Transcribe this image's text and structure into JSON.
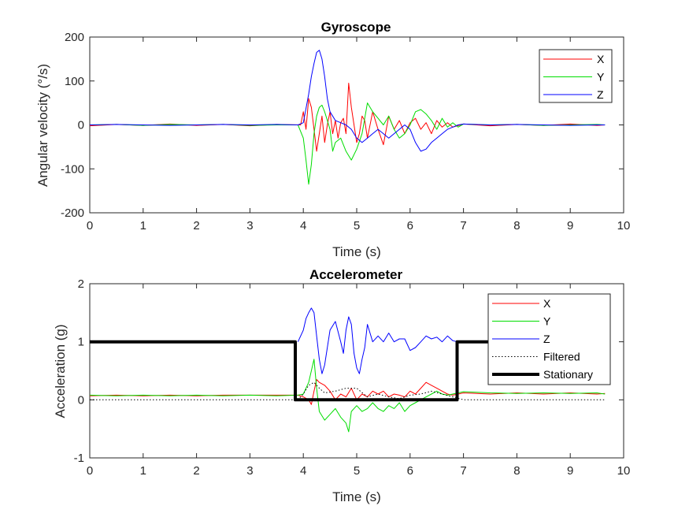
{
  "colors": {
    "x": "#ff0000",
    "y": "#00dd00",
    "z": "#0000ff",
    "filtered": "#000000",
    "stationary": "#000000",
    "axis": "#262626"
  },
  "chart_data": [
    {
      "type": "line",
      "title": "Gyroscope",
      "xlabel": "Time (s)",
      "ylabel": "Angular velocity (°/s)",
      "xlim": [
        0,
        10
      ],
      "ylim": [
        -200,
        200
      ],
      "xticks": [
        "0",
        "1",
        "2",
        "3",
        "4",
        "5",
        "6",
        "7",
        "8",
        "9",
        "10"
      ],
      "yticks": [
        "-200",
        "-100",
        "0",
        "100",
        "200"
      ],
      "legend_position": "top-right",
      "series": [
        {
          "name": "X",
          "color": "#ff0000",
          "x": [
            0,
            0.5,
            1,
            1.5,
            2,
            2.5,
            3,
            3.5,
            3.95,
            4.0,
            4.05,
            4.1,
            4.15,
            4.2,
            4.25,
            4.3,
            4.35,
            4.4,
            4.45,
            4.5,
            4.55,
            4.6,
            4.65,
            4.7,
            4.75,
            4.8,
            4.85,
            4.9,
            4.95,
            5.0,
            5.05,
            5.1,
            5.15,
            5.2,
            5.3,
            5.4,
            5.5,
            5.6,
            5.7,
            5.8,
            5.9,
            6.0,
            6.1,
            6.2,
            6.3,
            6.4,
            6.5,
            6.6,
            6.7,
            6.8,
            7.0,
            7.5,
            8.0,
            8.5,
            9.0,
            9.5,
            9.65
          ],
          "y": [
            -2,
            1,
            -1,
            2,
            -1,
            1,
            -2,
            1,
            0,
            30,
            -10,
            60,
            40,
            -10,
            -60,
            -20,
            20,
            -40,
            0,
            30,
            -20,
            10,
            -30,
            5,
            15,
            -20,
            95,
            40,
            0,
            -40,
            -20,
            20,
            10,
            -30,
            30,
            -10,
            -45,
            20,
            -10,
            10,
            -20,
            5,
            15,
            -10,
            5,
            -20,
            10,
            -5,
            5,
            -5,
            2,
            -2,
            1,
            -1,
            2,
            -1,
            0
          ]
        },
        {
          "name": "Y",
          "color": "#00dd00",
          "x": [
            0,
            0.5,
            1,
            1.5,
            2,
            2.5,
            3,
            3.5,
            3.9,
            4.0,
            4.05,
            4.1,
            4.15,
            4.2,
            4.25,
            4.3,
            4.35,
            4.4,
            4.45,
            4.5,
            4.55,
            4.6,
            4.7,
            4.8,
            4.9,
            5.0,
            5.1,
            5.2,
            5.3,
            5.4,
            5.5,
            5.6,
            5.7,
            5.8,
            5.9,
            6.0,
            6.1,
            6.2,
            6.3,
            6.4,
            6.5,
            6.6,
            6.7,
            6.8,
            6.9,
            7.0,
            7.5,
            8.0,
            8.5,
            9.0,
            9.5,
            9.65
          ],
          "y": [
            0,
            1,
            -1,
            1,
            0,
            1,
            -1,
            0,
            0,
            -30,
            -80,
            -135,
            -90,
            -20,
            20,
            40,
            45,
            30,
            10,
            -10,
            -60,
            -40,
            -30,
            -60,
            -80,
            -55,
            -20,
            50,
            30,
            15,
            0,
            20,
            -10,
            -30,
            -20,
            0,
            30,
            35,
            25,
            10,
            -10,
            15,
            -5,
            5,
            -5,
            2,
            0,
            1,
            -1,
            0,
            1,
            0
          ]
        },
        {
          "name": "Z",
          "color": "#0000ff",
          "x": [
            0,
            0.5,
            1,
            1.5,
            2,
            2.5,
            3,
            3.5,
            3.9,
            4.0,
            4.1,
            4.15,
            4.2,
            4.25,
            4.3,
            4.35,
            4.4,
            4.45,
            4.5,
            4.55,
            4.6,
            4.7,
            4.8,
            4.9,
            5.0,
            5.1,
            5.2,
            5.3,
            5.4,
            5.5,
            5.6,
            5.7,
            5.8,
            5.9,
            6.0,
            6.1,
            6.2,
            6.3,
            6.4,
            6.5,
            6.6,
            6.7,
            6.8,
            6.9,
            7.0,
            7.5,
            8.0,
            8.5,
            9.0,
            9.5,
            9.65
          ],
          "y": [
            0,
            1,
            0,
            -1,
            0,
            1,
            0,
            1,
            0,
            5,
            70,
            110,
            140,
            165,
            170,
            150,
            110,
            60,
            30,
            20,
            10,
            5,
            0,
            -10,
            -30,
            -40,
            -30,
            -20,
            -10,
            -20,
            -30,
            -20,
            -10,
            0,
            -10,
            -40,
            -60,
            -55,
            -40,
            -30,
            -20,
            -10,
            -5,
            0,
            2,
            0,
            1,
            0,
            -1,
            0,
            0
          ]
        }
      ]
    },
    {
      "type": "line",
      "title": "Accelerometer",
      "xlabel": "Time (s)",
      "ylabel": "Acceleration (g)",
      "xlim": [
        0,
        10
      ],
      "ylim": [
        -1,
        2
      ],
      "xticks": [
        "0",
        "1",
        "2",
        "3",
        "4",
        "5",
        "6",
        "7",
        "8",
        "9",
        "10"
      ],
      "yticks": [
        "-1",
        "0",
        "1",
        "2"
      ],
      "legend_position": "top-right",
      "series": [
        {
          "name": "X",
          "color": "#ff0000",
          "x": [
            0,
            0.5,
            1,
            1.5,
            2,
            2.5,
            3,
            3.5,
            3.9,
            4.0,
            4.1,
            4.15,
            4.2,
            4.25,
            4.3,
            4.4,
            4.5,
            4.6,
            4.7,
            4.8,
            4.9,
            5.0,
            5.1,
            5.2,
            5.3,
            5.4,
            5.5,
            5.6,
            5.7,
            5.8,
            5.9,
            6.0,
            6.1,
            6.2,
            6.3,
            6.4,
            6.5,
            6.6,
            6.7,
            6.8,
            6.9,
            7.0,
            7.5,
            8.0,
            8.5,
            9.0,
            9.5,
            9.65
          ],
          "y": [
            0.07,
            0.08,
            0.07,
            0.08,
            0.07,
            0.08,
            0.08,
            0.08,
            0.08,
            0.05,
            0.0,
            -0.08,
            0.15,
            0.35,
            0.3,
            0.25,
            0.15,
            0.0,
            0.1,
            0.05,
            0.2,
            0.0,
            0.1,
            0.05,
            0.15,
            0.1,
            0.15,
            0.05,
            0.1,
            0.08,
            0.05,
            0.15,
            0.1,
            0.2,
            0.3,
            0.25,
            0.2,
            0.15,
            0.1,
            0.08,
            0.1,
            0.12,
            0.1,
            0.12,
            0.1,
            0.12,
            0.1,
            0.11
          ]
        },
        {
          "name": "Y",
          "color": "#00dd00",
          "x": [
            0,
            0.5,
            1,
            1.5,
            2,
            2.5,
            3,
            3.5,
            3.9,
            4.0,
            4.1,
            4.15,
            4.2,
            4.25,
            4.3,
            4.4,
            4.5,
            4.6,
            4.7,
            4.8,
            4.85,
            4.9,
            5.0,
            5.1,
            5.2,
            5.3,
            5.4,
            5.5,
            5.6,
            5.7,
            5.8,
            5.9,
            6.0,
            6.1,
            6.2,
            6.3,
            6.4,
            6.5,
            6.6,
            6.7,
            6.8,
            6.9,
            7.0,
            7.5,
            8.0,
            8.5,
            9.0,
            9.5,
            9.65
          ],
          "y": [
            0.08,
            0.07,
            0.08,
            0.07,
            0.08,
            0.07,
            0.08,
            0.07,
            0.08,
            0.1,
            0.3,
            0.5,
            0.7,
            0.2,
            -0.2,
            -0.35,
            -0.25,
            -0.15,
            -0.3,
            -0.4,
            -0.55,
            -0.2,
            -0.1,
            -0.2,
            -0.15,
            -0.05,
            -0.15,
            -0.2,
            -0.1,
            -0.15,
            -0.05,
            -0.2,
            -0.1,
            -0.05,
            0.0,
            0.05,
            0.1,
            0.15,
            0.1,
            0.08,
            0.1,
            0.12,
            0.14,
            0.12,
            0.11,
            0.12,
            0.11,
            0.12,
            0.1
          ]
        },
        {
          "name": "Z",
          "color": "#0000ff",
          "x": [
            3.9,
            4.0,
            4.05,
            4.1,
            4.15,
            4.2,
            4.25,
            4.3,
            4.35,
            4.4,
            4.5,
            4.6,
            4.7,
            4.75,
            4.8,
            4.85,
            4.9,
            4.95,
            5.0,
            5.05,
            5.1,
            5.15,
            5.2,
            5.3,
            5.4,
            5.5,
            5.6,
            5.7,
            5.8,
            5.9,
            6.0,
            6.1,
            6.2,
            6.3,
            6.4,
            6.5,
            6.6,
            6.7,
            6.8,
            6.88
          ],
          "y": [
            1.0,
            1.2,
            1.4,
            1.5,
            1.58,
            1.5,
            1.1,
            0.7,
            0.45,
            0.6,
            1.2,
            1.35,
            1.0,
            0.8,
            1.2,
            1.43,
            1.3,
            0.8,
            0.55,
            0.45,
            0.7,
            0.9,
            1.3,
            1.0,
            1.1,
            1.0,
            1.15,
            1.0,
            1.05,
            1.05,
            0.85,
            0.9,
            1.0,
            1.1,
            1.05,
            1.08,
            1.0,
            1.1,
            1.02,
            1.0
          ]
        },
        {
          "name": "Filtered",
          "color": "#000000",
          "dash": "1.5 2.5",
          "x": [
            0,
            1,
            2,
            3,
            3.9,
            4.0,
            4.1,
            4.2,
            4.3,
            4.4,
            4.6,
            4.8,
            5.0,
            5.2,
            5.4,
            5.6,
            5.8,
            6.0,
            6.2,
            6.4,
            6.6,
            6.8,
            7.0,
            8.0,
            9.0,
            9.65
          ],
          "y": [
            0.0,
            0.0,
            0.0,
            0.0,
            0.0,
            0.1,
            0.25,
            0.3,
            0.2,
            0.12,
            0.15,
            0.2,
            0.2,
            0.05,
            0.1,
            0.05,
            0.02,
            0.08,
            0.1,
            0.15,
            0.1,
            0.05,
            0.0,
            0.0,
            0.0,
            0.0
          ]
        },
        {
          "name": "Stationary",
          "color": "#000000",
          "width": 4,
          "x": [
            0,
            3.85,
            3.85,
            6.88,
            6.88,
            9.65
          ],
          "y": [
            1,
            1,
            0,
            0,
            1,
            1
          ]
        }
      ]
    }
  ]
}
